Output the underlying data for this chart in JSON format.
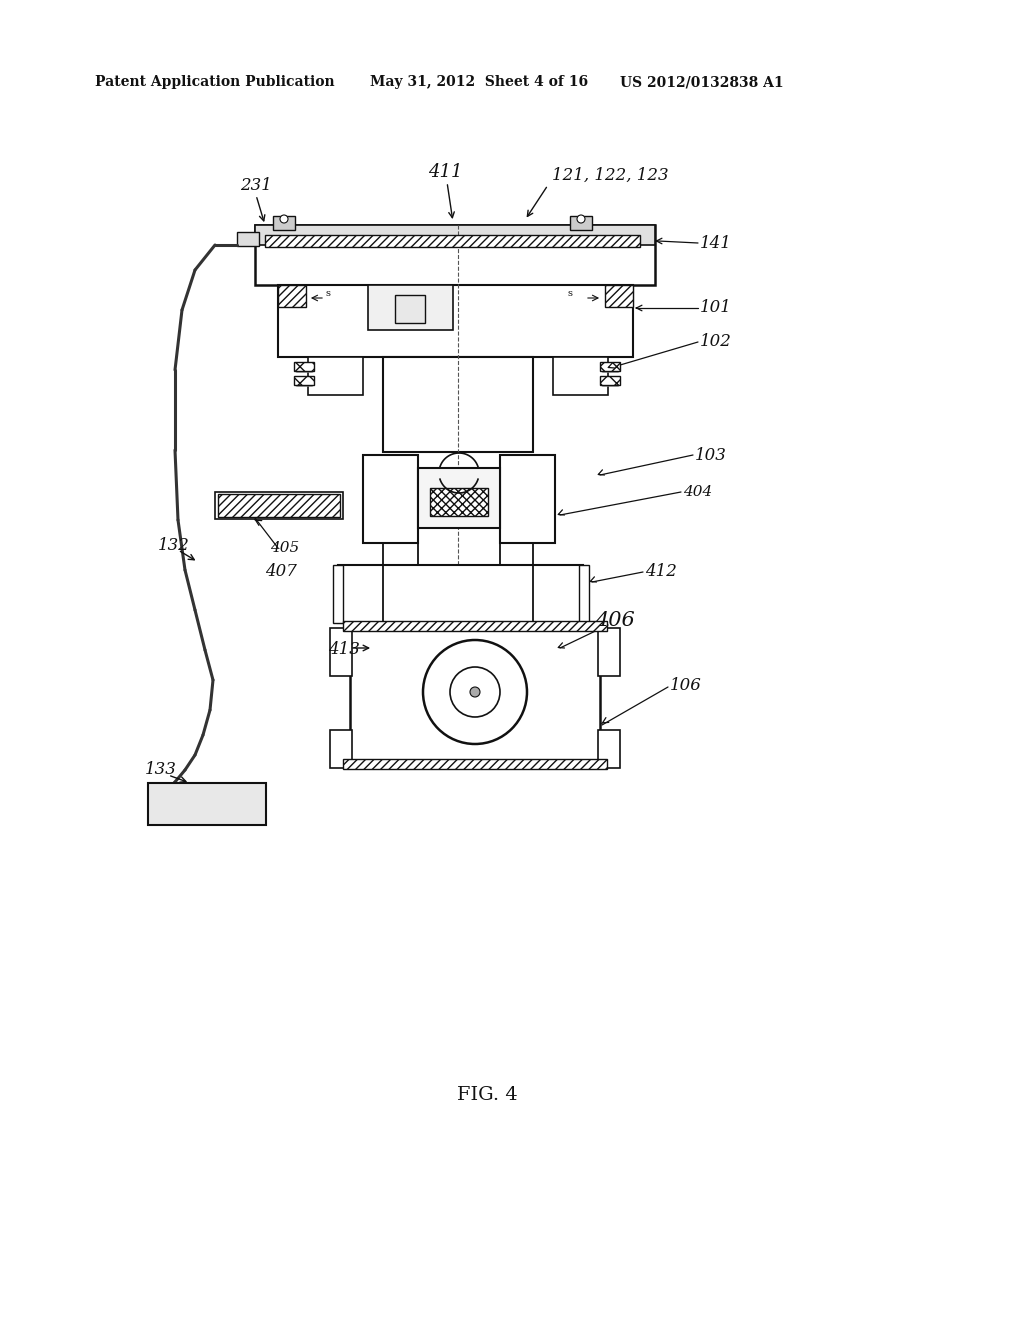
{
  "bg_color": "#ffffff",
  "header_left": "Patent Application Publication",
  "header_mid": "May 31, 2012  Sheet 4 of 16",
  "header_right": "US 2012/0132838 A1",
  "figure_label": "FIG. 4"
}
